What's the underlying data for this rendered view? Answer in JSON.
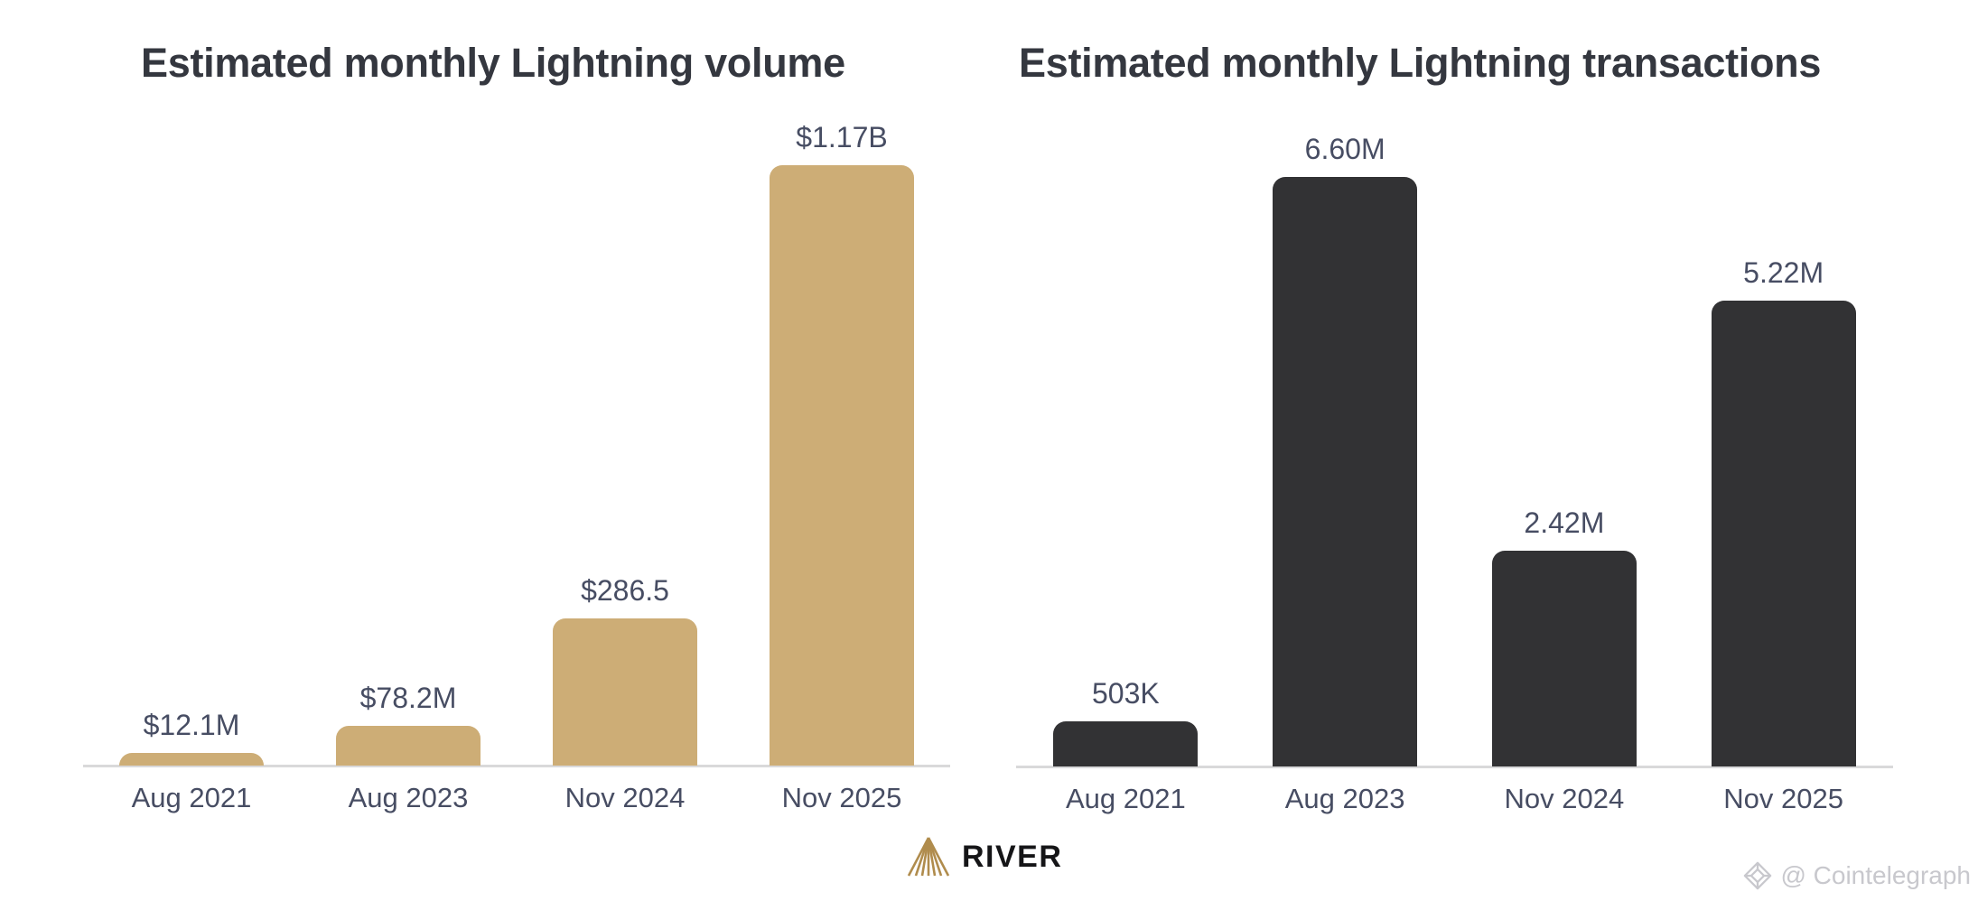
{
  "chart_data": [
    {
      "type": "bar",
      "title": "Estimated monthly Lightning volume",
      "categories": [
        "Aug 2021",
        "Aug 2023",
        "Nov 2024",
        "Nov 2025"
      ],
      "values": [
        12.1,
        78.2,
        286.5,
        1170
      ],
      "value_labels": [
        "$12.1M",
        "$78.2M",
        "$286.5",
        "$1.17B"
      ],
      "ylim": [
        0,
        1170
      ],
      "bar_color": "#CDAD76",
      "grid": false,
      "legend": "none"
    },
    {
      "type": "bar",
      "title": "Estimated monthly Lightning transactions",
      "categories": [
        "Aug 2021",
        "Aug 2023",
        "Nov 2024",
        "Nov 2025"
      ],
      "values": [
        0.503,
        6.6,
        2.42,
        5.22
      ],
      "value_labels": [
        "503K",
        "6.60M",
        "2.42M",
        "5.22M"
      ],
      "ylim": [
        0,
        6.6
      ],
      "bar_color": "#323234",
      "grid": false,
      "legend": "none"
    }
  ],
  "branding": {
    "logo_text": "RIVER",
    "logo_gold": "#B08C4D",
    "logo_text_color": "#151517"
  },
  "watermark": {
    "text": "@ Cointelegraph"
  },
  "colors": {
    "title": "#34373F",
    "label": "#474D63",
    "axis": "#D9D9DA",
    "watermark": "#C8C8CD"
  }
}
